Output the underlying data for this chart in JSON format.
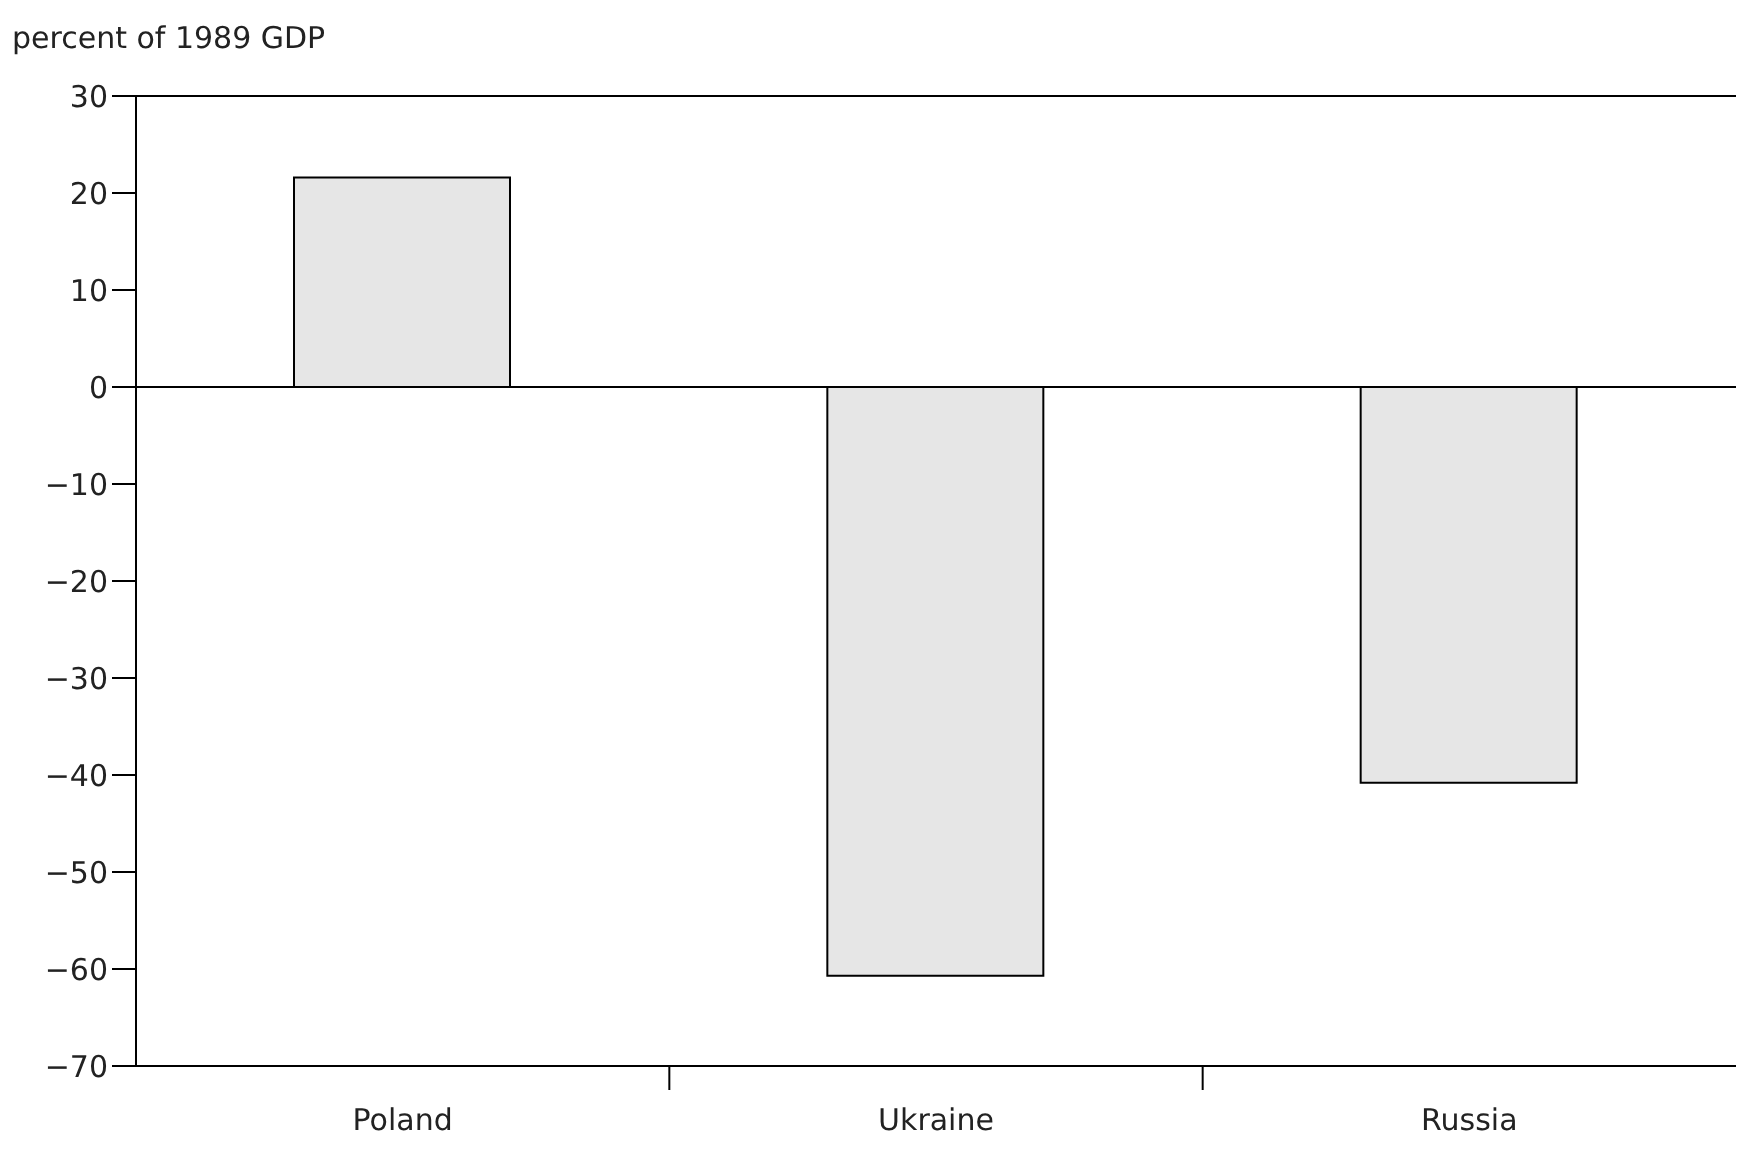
{
  "chart_data": {
    "type": "bar",
    "ylabel": "percent of 1989 GDP",
    "categories": [
      "Poland",
      "Ukraine",
      "Russia"
    ],
    "values": [
      21.6,
      -60.7,
      -40.8
    ],
    "color": "#e6e6e6",
    "ylim": [
      -70,
      30
    ],
    "yticks": [
      30,
      20,
      10,
      0,
      {
        "value": -10,
        "label": "−10"
      },
      {
        "value": -20,
        "label": "−20"
      },
      {
        "value": -30,
        "label": "−30"
      },
      {
        "value": -40,
        "label": "−40"
      },
      {
        "value": -50,
        "label": "−50"
      },
      {
        "value": -60,
        "label": "−60"
      },
      {
        "value": -70,
        "label": "−70"
      }
    ],
    "ref_lines": [
      {
        "axis": "y",
        "value": 0,
        "label": null
      }
    ],
    "grid": false,
    "legend": false
  }
}
